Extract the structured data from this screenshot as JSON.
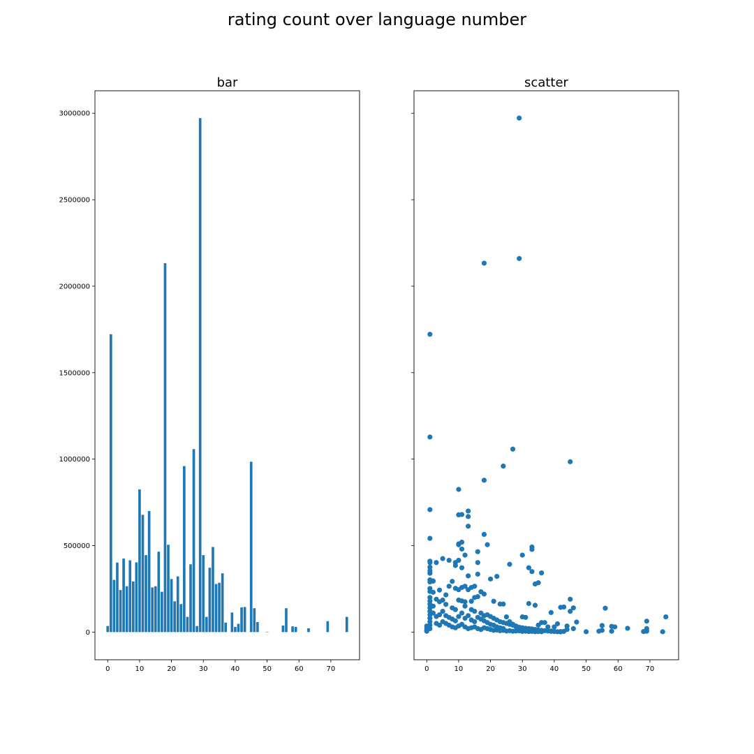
{
  "suptitle": "rating count over language number",
  "chart_data": [
    {
      "type": "bar",
      "title": "bar",
      "xlabel": "",
      "ylabel": "",
      "color": "#1f77b4",
      "xlim": [
        -4,
        79
      ],
      "ylim": [
        -160000,
        3130000
      ],
      "xticks": [
        0,
        10,
        20,
        30,
        40,
        50,
        60,
        70
      ],
      "yticks": [
        0,
        500000,
        1000000,
        1500000,
        2000000,
        2500000,
        3000000
      ],
      "x": [
        0,
        1,
        2,
        3,
        4,
        5,
        6,
        7,
        8,
        9,
        10,
        11,
        12,
        13,
        14,
        15,
        16,
        17,
        18,
        19,
        20,
        21,
        22,
        23,
        24,
        25,
        26,
        27,
        28,
        29,
        30,
        31,
        32,
        33,
        34,
        35,
        36,
        37,
        39,
        40,
        41,
        42,
        43,
        45,
        46,
        47,
        50,
        55,
        56,
        58,
        59,
        63,
        69,
        75
      ],
      "values": [
        35000,
        1722000,
        302000,
        402000,
        243000,
        425000,
        265000,
        415000,
        293000,
        403000,
        825000,
        678000,
        445000,
        700000,
        258000,
        265000,
        465000,
        233000,
        2133000,
        505000,
        307000,
        178000,
        322000,
        162000,
        960000,
        88000,
        392000,
        1058000,
        35000,
        2972000,
        445000,
        88000,
        372000,
        492000,
        278000,
        285000,
        340000,
        55000,
        113000,
        30000,
        48000,
        143000,
        145000,
        985000,
        138000,
        58000,
        2000,
        38000,
        138000,
        33000,
        30000,
        22000,
        63000,
        88000
      ]
    },
    {
      "type": "scatter",
      "title": "scatter",
      "xlabel": "",
      "ylabel": "",
      "color": "#1f77b4",
      "xlim": [
        -4,
        79
      ],
      "ylim": [
        -160000,
        3130000
      ],
      "xticks": [
        0,
        10,
        20,
        30,
        40,
        50,
        60,
        70
      ],
      "yticks": [
        0,
        500000,
        1000000,
        1500000,
        2000000,
        2500000,
        3000000
      ],
      "y_tick_labels_shown": false,
      "points": [
        [
          29,
          2972000
        ],
        [
          18,
          2133000
        ],
        [
          29,
          2160000
        ],
        [
          1,
          1722000
        ],
        [
          1,
          1128000
        ],
        [
          27,
          1058000
        ],
        [
          24,
          960000
        ],
        [
          45,
          985000
        ],
        [
          18,
          878000
        ],
        [
          10,
          825000
        ],
        [
          1,
          708000
        ],
        [
          13,
          700000
        ],
        [
          10,
          678000
        ],
        [
          11,
          680000
        ],
        [
          13,
          668000
        ],
        [
          13,
          612000
        ],
        [
          18,
          565000
        ],
        [
          1,
          542000
        ],
        [
          11,
          520000
        ],
        [
          10,
          505000
        ],
        [
          10,
          510000
        ],
        [
          19,
          505000
        ],
        [
          33,
          492000
        ],
        [
          33,
          478000
        ],
        [
          11,
          480000
        ],
        [
          16,
          465000
        ],
        [
          12,
          445000
        ],
        [
          30,
          445000
        ],
        [
          5,
          425000
        ],
        [
          3,
          402000
        ],
        [
          7,
          415000
        ],
        [
          1,
          402000
        ],
        [
          1,
          410000
        ],
        [
          10,
          415000
        ],
        [
          9,
          402000
        ],
        [
          16,
          402000
        ],
        [
          26,
          392000
        ],
        [
          9,
          385000
        ],
        [
          1,
          375000
        ],
        [
          11,
          372000
        ],
        [
          1,
          355000
        ],
        [
          32,
          372000
        ],
        [
          33,
          350000
        ],
        [
          36,
          342000
        ],
        [
          1,
          340000
        ],
        [
          13,
          325000
        ],
        [
          16,
          335000
        ],
        [
          22,
          322000
        ],
        [
          35,
          285000
        ],
        [
          34,
          278000
        ],
        [
          20,
          307000
        ],
        [
          1,
          302000
        ],
        [
          8,
          293000
        ],
        [
          2,
          295000
        ],
        [
          1,
          290000
        ],
        [
          2,
          295000
        ],
        [
          12,
          265000
        ],
        [
          15,
          265000
        ],
        [
          11,
          258000
        ],
        [
          14,
          258000
        ],
        [
          7,
          265000
        ],
        [
          4,
          243000
        ],
        [
          9,
          253000
        ],
        [
          10,
          245000
        ],
        [
          13,
          245000
        ],
        [
          1,
          252000
        ],
        [
          17,
          233000
        ],
        [
          18,
          220000
        ],
        [
          16,
          205000
        ],
        [
          15,
          200000
        ],
        [
          1,
          235000
        ],
        [
          2,
          230000
        ],
        [
          6,
          215000
        ],
        [
          10,
          185000
        ],
        [
          11,
          180000
        ],
        [
          12,
          175000
        ],
        [
          14,
          178000
        ],
        [
          21,
          178000
        ],
        [
          23,
          162000
        ],
        [
          24,
          162000
        ],
        [
          32,
          165000
        ],
        [
          34,
          155000
        ],
        [
          56,
          138000
        ],
        [
          43,
          145000
        ],
        [
          42,
          143000
        ],
        [
          45,
          190000
        ],
        [
          46,
          140000
        ],
        [
          39,
          113000
        ],
        [
          47,
          58000
        ],
        [
          36,
          55000
        ],
        [
          41,
          48000
        ],
        [
          40,
          30000
        ],
        [
          50,
          2000
        ],
        [
          55,
          38000
        ],
        [
          58,
          33000
        ],
        [
          59,
          30000
        ],
        [
          63,
          22000
        ],
        [
          69,
          63000
        ],
        [
          69,
          20000
        ],
        [
          75,
          88000
        ],
        [
          30,
          88000
        ],
        [
          31,
          85000
        ],
        [
          25,
          88000
        ],
        [
          37,
          55000
        ],
        [
          28,
          35000
        ],
        [
          26,
          60000
        ],
        [
          27,
          45000
        ],
        [
          35,
          40000
        ],
        [
          38,
          30000
        ],
        [
          44,
          35000
        ],
        [
          45,
          120000
        ],
        [
          46,
          20000
        ],
        [
          44,
          15000
        ],
        [
          54,
          5000
        ],
        [
          55,
          10000
        ],
        [
          58,
          5000
        ],
        [
          68,
          3000
        ],
        [
          69,
          5000
        ],
        [
          74,
          2000
        ],
        [
          42,
          3000
        ],
        [
          43,
          4000
        ],
        [
          40,
          5000
        ],
        [
          39,
          6000
        ],
        [
          36,
          2000
        ],
        [
          2,
          150000
        ],
        [
          3,
          190000
        ],
        [
          4,
          175000
        ],
        [
          5,
          185000
        ],
        [
          6,
          160000
        ],
        [
          8,
          140000
        ],
        [
          9,
          130000
        ],
        [
          12,
          150000
        ],
        [
          14,
          130000
        ],
        [
          15,
          120000
        ],
        [
          17,
          110000
        ],
        [
          18,
          95000
        ],
        [
          19,
          100000
        ],
        [
          20,
          90000
        ],
        [
          21,
          80000
        ],
        [
          22,
          70000
        ],
        [
          23,
          60000
        ],
        [
          24,
          55000
        ],
        [
          25,
          50000
        ],
        [
          26,
          45000
        ],
        [
          27,
          40000
        ],
        [
          28,
          30000
        ],
        [
          29,
          28000
        ],
        [
          30,
          25000
        ],
        [
          31,
          22000
        ],
        [
          32,
          20000
        ],
        [
          33,
          18000
        ],
        [
          34,
          15000
        ],
        [
          35,
          12000
        ],
        [
          36,
          10000
        ],
        [
          37,
          8000
        ],
        [
          38,
          6000
        ],
        [
          39,
          4000
        ],
        [
          40,
          3000
        ],
        [
          41,
          2000
        ],
        [
          42,
          1000
        ],
        [
          1,
          200000
        ],
        [
          1,
          180000
        ],
        [
          1,
          160000
        ],
        [
          1,
          140000
        ],
        [
          1,
          120000
        ],
        [
          1,
          100000
        ],
        [
          1,
          80000
        ],
        [
          1,
          60000
        ],
        [
          1,
          40000
        ],
        [
          1,
          20000
        ],
        [
          2,
          110000
        ],
        [
          3,
          90000
        ],
        [
          4,
          100000
        ],
        [
          5,
          120000
        ],
        [
          6,
          95000
        ],
        [
          7,
          85000
        ],
        [
          8,
          75000
        ],
        [
          9,
          65000
        ],
        [
          10,
          90000
        ],
        [
          11,
          110000
        ],
        [
          12,
          80000
        ],
        [
          13,
          95000
        ],
        [
          14,
          70000
        ],
        [
          15,
          60000
        ],
        [
          16,
          85000
        ],
        [
          17,
          75000
        ],
        [
          18,
          65000
        ],
        [
          19,
          55000
        ],
        [
          20,
          45000
        ],
        [
          21,
          40000
        ],
        [
          0,
          35000
        ],
        [
          0,
          20000
        ],
        [
          0,
          10000
        ],
        [
          0,
          5000
        ],
        [
          3,
          50000
        ],
        [
          4,
          40000
        ],
        [
          5,
          60000
        ],
        [
          6,
          50000
        ],
        [
          7,
          40000
        ],
        [
          8,
          30000
        ],
        [
          9,
          25000
        ],
        [
          10,
          35000
        ],
        [
          11,
          45000
        ],
        [
          12,
          30000
        ],
        [
          13,
          20000
        ],
        [
          14,
          25000
        ],
        [
          15,
          30000
        ],
        [
          16,
          20000
        ],
        [
          17,
          15000
        ],
        [
          18,
          25000
        ],
        [
          19,
          20000
        ],
        [
          20,
          15000
        ],
        [
          21,
          10000
        ],
        [
          22,
          12000
        ],
        [
          23,
          8000
        ],
        [
          24,
          10000
        ],
        [
          25,
          6000
        ],
        [
          26,
          8000
        ],
        [
          27,
          5000
        ],
        [
          28,
          6000
        ],
        [
          29,
          7000
        ],
        [
          30,
          4000
        ],
        [
          31,
          5000
        ],
        [
          32,
          3000
        ],
        [
          33,
          4000
        ],
        [
          34,
          2000
        ],
        [
          35,
          3000
        ],
        [
          22,
          30000
        ],
        [
          23,
          25000
        ],
        [
          24,
          20000
        ]
      ]
    }
  ]
}
